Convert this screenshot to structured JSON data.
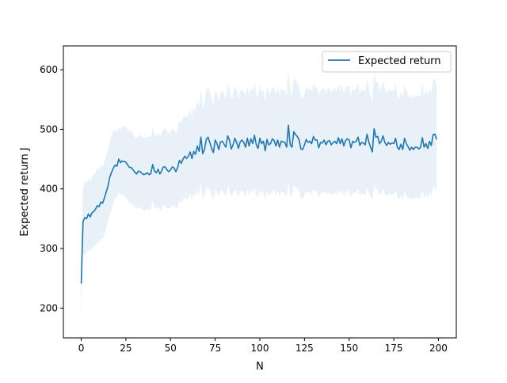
{
  "chart_data": {
    "type": "line",
    "title": "",
    "xlabel": "N",
    "ylabel": "Expected return J",
    "xlim": [
      -10,
      210
    ],
    "ylim": [
      150,
      640
    ],
    "grid": false,
    "legend_position": "top-right",
    "x_ticks": [
      0,
      25,
      50,
      75,
      100,
      125,
      150,
      175,
      200
    ],
    "y_ticks": [
      200,
      300,
      400,
      500,
      600
    ],
    "colors": {
      "line": "#1f77b4",
      "band": "#1f77b4"
    },
    "series": [
      {
        "name": "Expected return",
        "x": [
          0,
          1,
          2,
          3,
          4,
          5,
          6,
          7,
          8,
          9,
          10,
          11,
          12,
          13,
          14,
          15,
          16,
          17,
          18,
          19,
          20,
          21,
          22,
          23,
          24,
          25,
          26,
          27,
          28,
          29,
          30,
          31,
          32,
          33,
          34,
          35,
          36,
          37,
          38,
          39,
          40,
          41,
          42,
          43,
          44,
          45,
          46,
          47,
          48,
          49,
          50,
          51,
          52,
          53,
          54,
          55,
          56,
          57,
          58,
          59,
          60,
          61,
          62,
          63,
          64,
          65,
          66,
          67,
          68,
          69,
          70,
          71,
          72,
          73,
          74,
          75,
          76,
          77,
          78,
          79,
          80,
          81,
          82,
          83,
          84,
          85,
          86,
          87,
          88,
          89,
          90,
          91,
          92,
          93,
          94,
          95,
          96,
          97,
          98,
          99,
          100,
          101,
          102,
          103,
          104,
          105,
          106,
          107,
          108,
          109,
          110,
          111,
          112,
          113,
          114,
          115,
          116,
          117,
          118,
          119,
          120,
          121,
          122,
          123,
          124,
          125,
          126,
          127,
          128,
          129,
          130,
          131,
          132,
          133,
          134,
          135,
          136,
          137,
          138,
          139,
          140,
          141,
          142,
          143,
          144,
          145,
          146,
          147,
          148,
          149,
          150,
          151,
          152,
          153,
          154,
          155,
          156,
          157,
          158,
          159,
          160,
          161,
          162,
          163,
          164,
          165,
          166,
          167,
          168,
          169,
          170,
          171,
          172,
          173,
          174,
          175,
          176,
          177,
          178,
          179,
          180,
          181,
          182,
          183,
          184,
          185,
          186,
          187,
          188,
          189,
          190,
          191,
          192,
          193,
          194,
          195,
          196,
          197,
          198,
          199
        ],
        "y": [
          241,
          345,
          352,
          350,
          358,
          353,
          360,
          362,
          366,
          372,
          370,
          378,
          376,
          385,
          395,
          405,
          420,
          428,
          435,
          440,
          438,
          450,
          444,
          447,
          446,
          445,
          440,
          436,
          436,
          432,
          428,
          425,
          430,
          429,
          426,
          424,
          425,
          427,
          424,
          426,
          441,
          430,
          427,
          433,
          425,
          430,
          437,
          437,
          432,
          429,
          432,
          437,
          435,
          429,
          436,
          448,
          443,
          450,
          455,
          451,
          455,
          462,
          451,
          463,
          458,
          472,
          463,
          487,
          459,
          466,
          483,
          487,
          478,
          468,
          461,
          482,
          476,
          466,
          479,
          480,
          475,
          470,
          489,
          482,
          467,
          474,
          485,
          478,
          468,
          479,
          482,
          478,
          470,
          485,
          472,
          484,
          476,
          490,
          474,
          468,
          485,
          476,
          480,
          464,
          483,
          474,
          476,
          484,
          481,
          472,
          482,
          470,
          480,
          479,
          478,
          470,
          507,
          474,
          470,
          496,
          491,
          488,
          482,
          467,
          466,
          474,
          483,
          478,
          480,
          476,
          488,
          482,
          482,
          469,
          478,
          477,
          482,
          474,
          480,
          481,
          474,
          478,
          480,
          476,
          486,
          476,
          484,
          472,
          481,
          484,
          482,
          469,
          480,
          478,
          480,
          487,
          473,
          478,
          477,
          474,
          492,
          479,
          470,
          462,
          501,
          487,
          488,
          476,
          480,
          489,
          478,
          473,
          478,
          475,
          477,
          476,
          485,
          470,
          466,
          475,
          466,
          485,
          476,
          471,
          465,
          470,
          466,
          470,
          470,
          467,
          470,
          486,
          470,
          476,
          468,
          480,
          473,
          491,
          492,
          483
        ],
        "lower": [
          180,
          290,
          290,
          292,
          298,
          296,
          300,
          303,
          306,
          310,
          310,
          316,
          316,
          324,
          334,
          346,
          356,
          367,
          376,
          386,
          384,
          395,
          390,
          391,
          389,
          386,
          382,
          376,
          376,
          373,
          370,
          367,
          370,
          369,
          366,
          364,
          365,
          367,
          364,
          366,
          380,
          370,
          367,
          372,
          364,
          367,
          373,
          373,
          369,
          367,
          369,
          373,
          372,
          367,
          371,
          380,
          376,
          383,
          386,
          382,
          385,
          392,
          382,
          393,
          388,
          398,
          390,
          410,
          384,
          390,
          402,
          405,
          398,
          389,
          382,
          399,
          395,
          387,
          398,
          398,
          393,
          388,
          405,
          399,
          386,
          393,
          400,
          395,
          386,
          396,
          398,
          394,
          387,
          400,
          389,
          399,
          392,
          404,
          390,
          385,
          398,
          393,
          396,
          382,
          397,
          390,
          392,
          398,
          396,
          389,
          397,
          387,
          395,
          394,
          393,
          387,
          412,
          390,
          387,
          407,
          403,
          400,
          396,
          384,
          384,
          390,
          397,
          393,
          395,
          391,
          400,
          397,
          396,
          385,
          393,
          392,
          396,
          390,
          394,
          395,
          390,
          392,
          394,
          391,
          399,
          391,
          397,
          388,
          395,
          397,
          395,
          385,
          394,
          393,
          394,
          400,
          388,
          392,
          392,
          389,
          403,
          393,
          386,
          380,
          410,
          399,
          400,
          390,
          393,
          401,
          392,
          388,
          392,
          390,
          391,
          390,
          398,
          386,
          382,
          389,
          382,
          397,
          390,
          386,
          381,
          385,
          382,
          385,
          385,
          383,
          386,
          398,
          385,
          390,
          384,
          394,
          388,
          402,
          403,
          396
        ],
        "upper": [
          300,
          400,
          413,
          410,
          418,
          412,
          420,
          423,
          427,
          434,
          432,
          440,
          437,
          446,
          456,
          465,
          480,
          490,
          496,
          500,
          494,
          505,
          500,
          504,
          504,
          506,
          500,
          497,
          497,
          493,
          487,
          485,
          490,
          490,
          487,
          485,
          486,
          489,
          486,
          488,
          502,
          491,
          488,
          494,
          487,
          493,
          500,
          502,
          497,
          493,
          496,
          501,
          500,
          493,
          501,
          515,
          510,
          519,
          524,
          520,
          525,
          534,
          522,
          536,
          531,
          547,
          538,
          568,
          536,
          544,
          566,
          571,
          562,
          550,
          542,
          566,
          560,
          549,
          563,
          564,
          558,
          553,
          575,
          567,
          550,
          558,
          572,
          564,
          552,
          565,
          568,
          564,
          555,
          573,
          557,
          571,
          562,
          580,
          560,
          553,
          575,
          562,
          567,
          548,
          572,
          561,
          562,
          572,
          569,
          558,
          570,
          556,
          568,
          566,
          565,
          556,
          600,
          562,
          556,
          588,
          582,
          579,
          571,
          553,
          551,
          561,
          573,
          566,
          569,
          564,
          579,
          571,
          571,
          556,
          566,
          566,
          571,
          561,
          569,
          570,
          561,
          567,
          569,
          564,
          576,
          564,
          574,
          559,
          570,
          574,
          571,
          556,
          569,
          566,
          569,
          577,
          560,
          567,
          566,
          562,
          585,
          568,
          556,
          547,
          596,
          579,
          580,
          566,
          570,
          581,
          567,
          561,
          567,
          564,
          566,
          564,
          576,
          556,
          552,
          563,
          552,
          575,
          564,
          559,
          551,
          557,
          552,
          558,
          557,
          554,
          557,
          578,
          557,
          566,
          556,
          570,
          561,
          583,
          585,
          574
        ]
      }
    ]
  }
}
